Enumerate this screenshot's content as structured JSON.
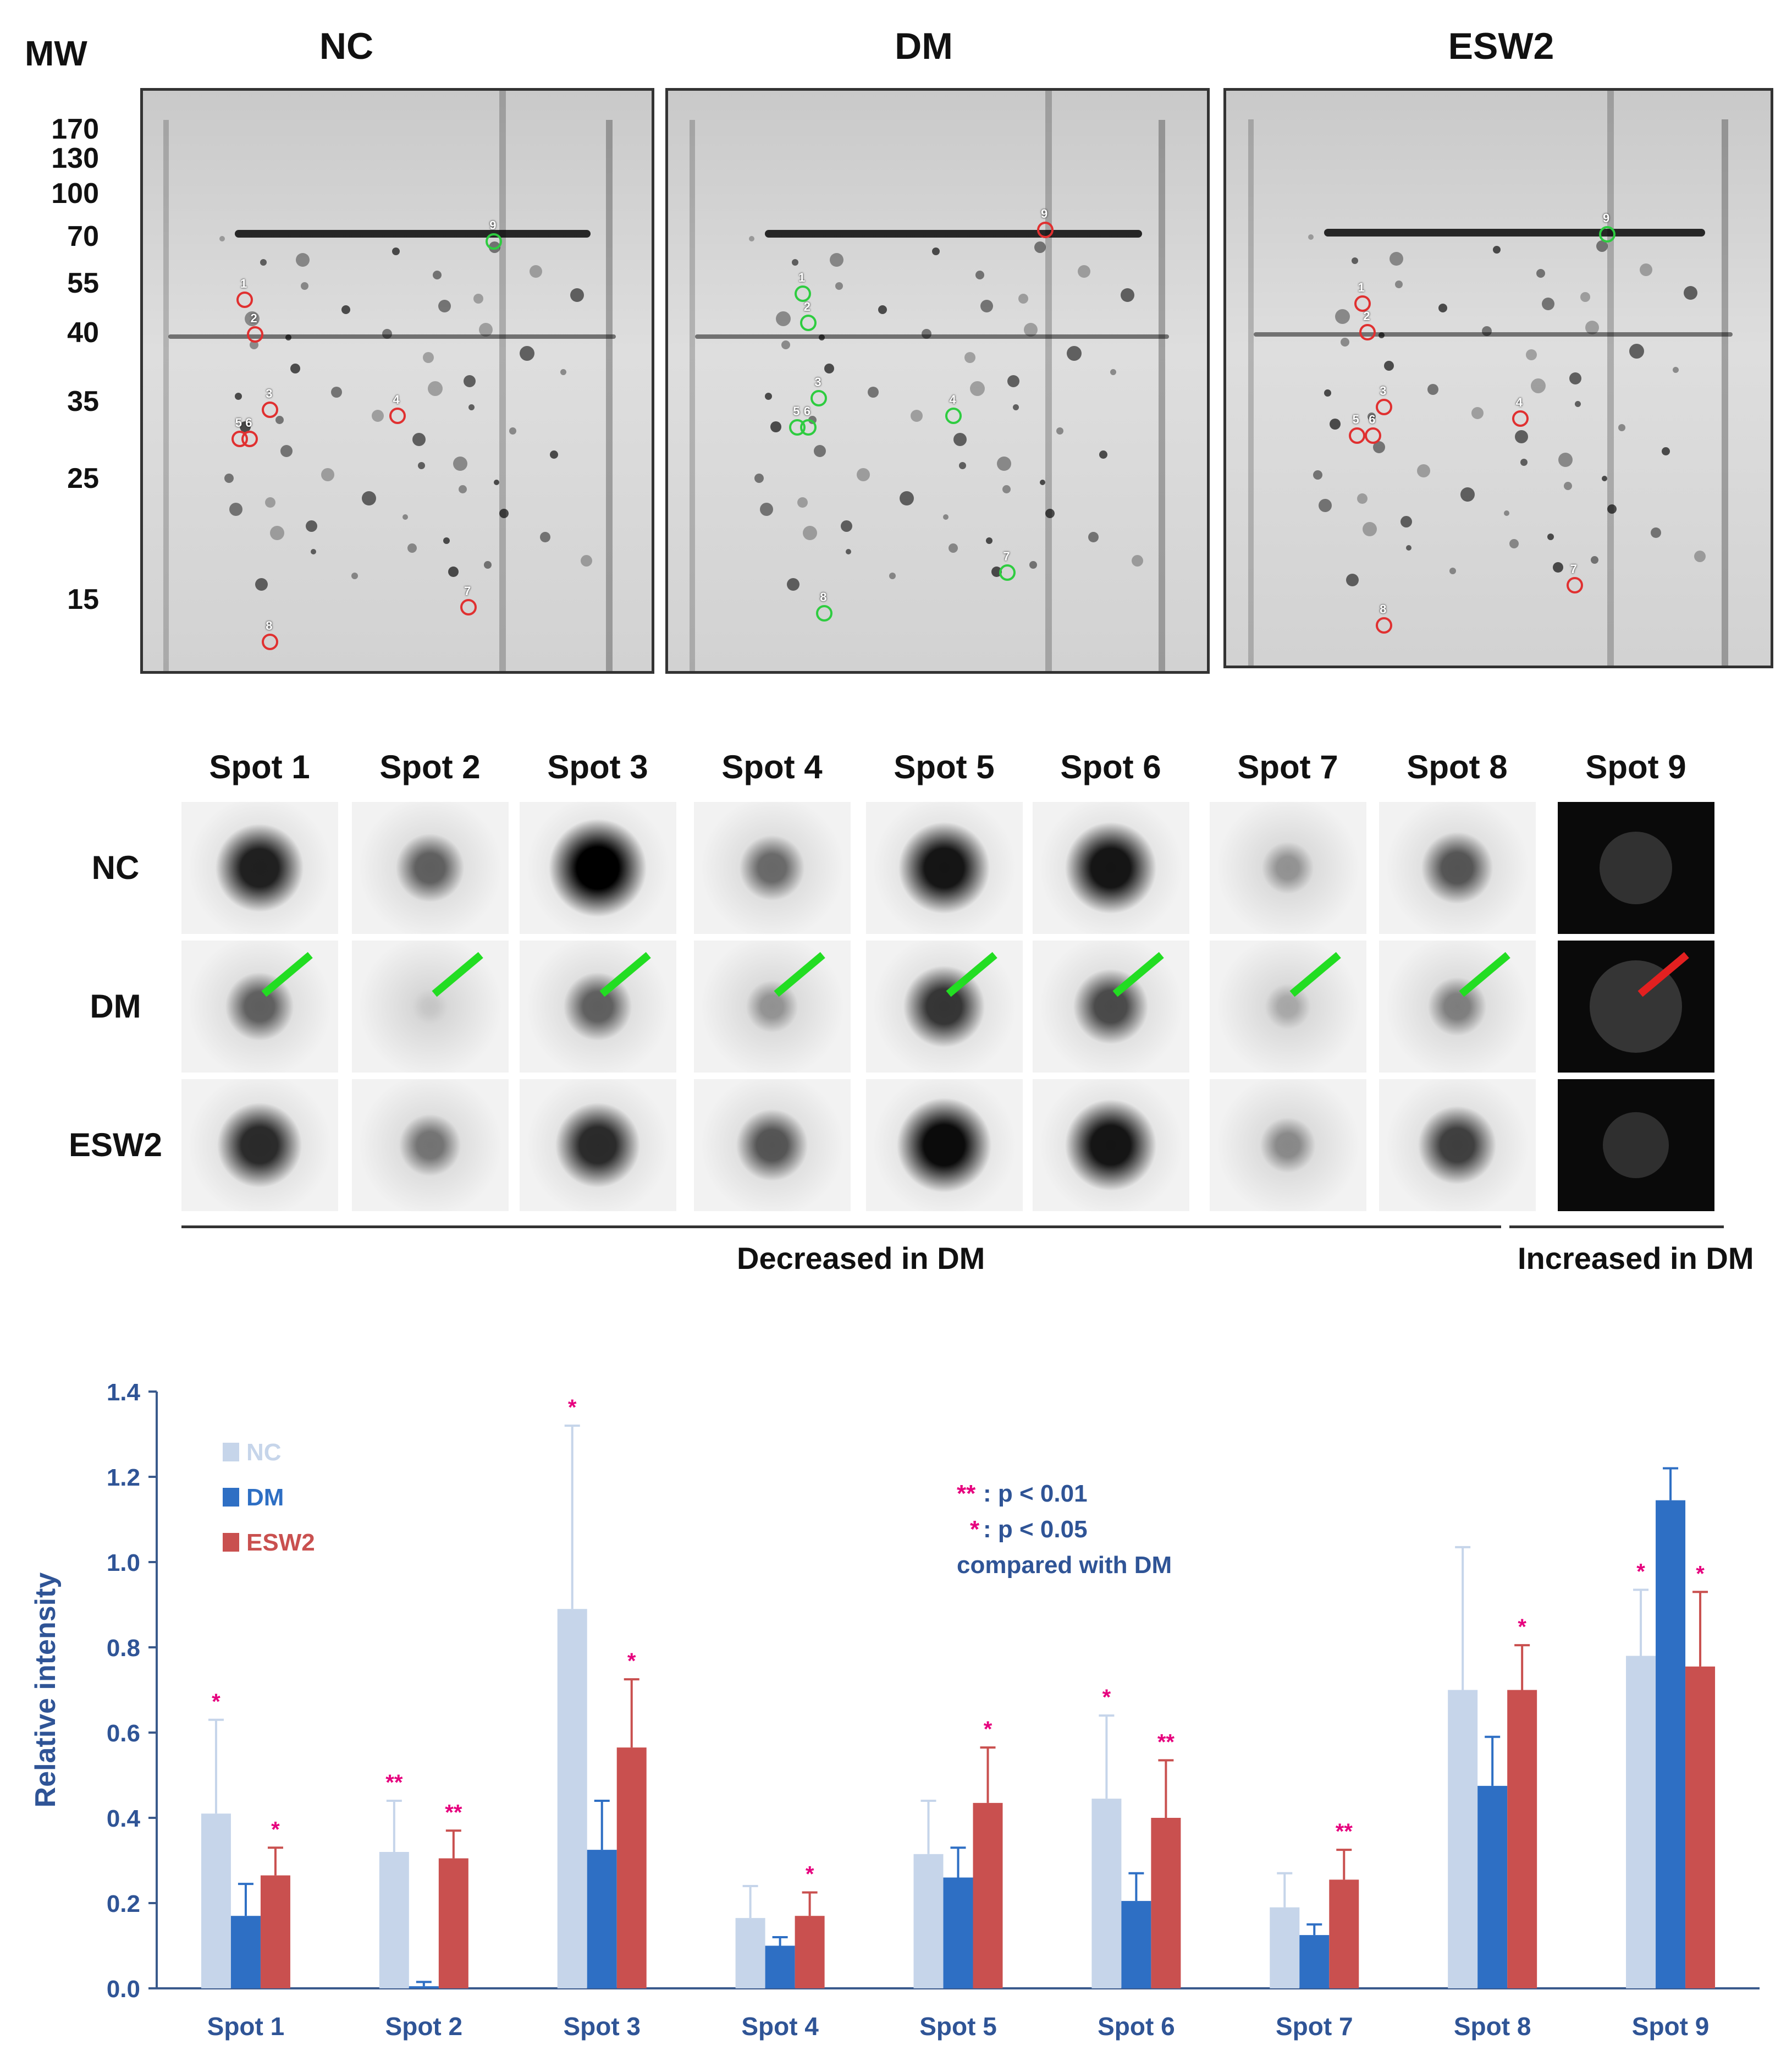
{
  "gels": {
    "mw_label": "MW",
    "mw_markers": [
      "170",
      "130",
      "100",
      "70",
      "55",
      "40",
      "35",
      "25",
      "15"
    ],
    "panels": [
      {
        "title": "NC",
        "spots": [
          {
            "id": "1",
            "status": "red"
          },
          {
            "id": "2",
            "status": "red"
          },
          {
            "id": "3",
            "status": "red"
          },
          {
            "id": "4",
            "status": "red"
          },
          {
            "id": "5",
            "status": "red"
          },
          {
            "id": "6",
            "status": "red"
          },
          {
            "id": "7",
            "status": "red"
          },
          {
            "id": "8",
            "status": "red"
          },
          {
            "id": "9",
            "status": "green"
          }
        ]
      },
      {
        "title": "DM",
        "spots": [
          {
            "id": "1",
            "status": "green"
          },
          {
            "id": "2",
            "status": "green"
          },
          {
            "id": "3",
            "status": "green"
          },
          {
            "id": "4",
            "status": "green"
          },
          {
            "id": "5",
            "status": "green"
          },
          {
            "id": "6",
            "status": "green"
          },
          {
            "id": "7",
            "status": "green"
          },
          {
            "id": "8",
            "status": "green"
          },
          {
            "id": "9",
            "status": "red"
          }
        ]
      },
      {
        "title": "ESW2",
        "spots": [
          {
            "id": "1",
            "status": "red"
          },
          {
            "id": "2",
            "status": "red"
          },
          {
            "id": "3",
            "status": "red"
          },
          {
            "id": "4",
            "status": "red"
          },
          {
            "id": "5",
            "status": "red"
          },
          {
            "id": "6",
            "status": "red"
          },
          {
            "id": "7",
            "status": "red"
          },
          {
            "id": "8",
            "status": "red"
          },
          {
            "id": "9",
            "status": "green"
          }
        ]
      }
    ],
    "colors": {
      "up": "#e03030",
      "down": "#2ecc40"
    }
  },
  "zoom": {
    "spot_headers": [
      "Spot 1",
      "Spot 2",
      "Spot 3",
      "Spot 4",
      "Spot 5",
      "Spot 6",
      "Spot 7",
      "Spot 8",
      "Spot 9"
    ],
    "row_labels": [
      "NC",
      "DM",
      "ESW2"
    ],
    "decreased_label": "Decreased in DM",
    "increased_label": "Increased in DM",
    "arrow_colors": {
      "decreased": "#22dd22",
      "increased": "#e32020"
    }
  },
  "chart_data": {
    "type": "bar",
    "ylabel": "Relative intensity",
    "xlabel": "",
    "ylim": [
      0,
      1.4
    ],
    "yticks": [
      "0.0",
      "0.2",
      "0.4",
      "0.6",
      "0.8",
      "1.0",
      "1.2",
      "1.4"
    ],
    "categories": [
      "Spot 1",
      "Spot 2",
      "Spot 3",
      "Spot 4",
      "Spot 5",
      "Spot 6",
      "Spot 7",
      "Spot 8",
      "Spot 9"
    ],
    "series": [
      {
        "name": "NC",
        "color": "#c6d5ea",
        "values": [
          0.41,
          0.32,
          0.89,
          0.165,
          0.315,
          0.445,
          0.19,
          0.7,
          0.78
        ],
        "errors": [
          0.22,
          0.12,
          0.43,
          0.075,
          0.125,
          0.195,
          0.08,
          0.335,
          0.155
        ],
        "sig": [
          "*",
          "**",
          "*",
          "",
          "",
          "*",
          "",
          "",
          "*"
        ]
      },
      {
        "name": "DM",
        "color": "#2e6fc4",
        "values": [
          0.17,
          0.005,
          0.325,
          0.1,
          0.26,
          0.205,
          0.125,
          0.475,
          1.145
        ],
        "errors": [
          0.075,
          0.01,
          0.115,
          0.02,
          0.07,
          0.065,
          0.025,
          0.115,
          0.075
        ],
        "sig": [
          "",
          "",
          "",
          "",
          "",
          "",
          "",
          "",
          ""
        ]
      },
      {
        "name": "ESW2",
        "color": "#c9504f",
        "values": [
          0.265,
          0.305,
          0.565,
          0.17,
          0.435,
          0.4,
          0.255,
          0.7,
          0.755
        ],
        "errors": [
          0.065,
          0.065,
          0.16,
          0.055,
          0.13,
          0.135,
          0.07,
          0.105,
          0.175
        ],
        "sig": [
          "*",
          "**",
          "*",
          "*",
          "*",
          "**",
          "**",
          "*",
          "*"
        ]
      }
    ],
    "sig_color": "#e6007e",
    "legend_position": "top-left",
    "annotation": {
      "line1_mark": "**",
      "line1_text": ": p < 0.01",
      "line2_mark": "*",
      "line2_text": ": p < 0.05",
      "line3_text": "compared with DM"
    }
  }
}
